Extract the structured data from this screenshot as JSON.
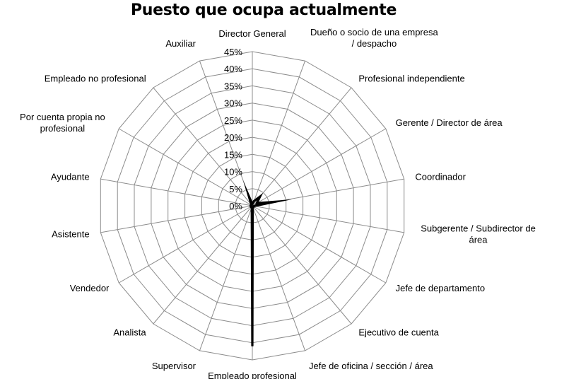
{
  "chart_data": {
    "type": "radar",
    "title": "Puesto que ocupa actualmente",
    "categories": [
      "Director General",
      "Dueño o socio de una empresa / despacho",
      "Profesional independiente",
      "Gerente / Director de área",
      "Coordinador",
      "Subgerente / Subdirector de área",
      "Jefe de departamento",
      "Ejecutivo de cuenta",
      "Jefe de oficina / sección / área",
      "Empleado profesional",
      "Supervisor",
      "Analista",
      "Vendedor",
      "Asistente",
      "Ayudante",
      "Por cuenta propia no profesional",
      "Empleado no profesional",
      "Auxiliar"
    ],
    "label_lines": [
      [
        "Director General"
      ],
      [
        "Dueño o socio de una empresa",
        "/ despacho"
      ],
      [
        "Profesional independiente"
      ],
      [
        "Gerente / Director de área"
      ],
      [
        "Coordinador"
      ],
      [
        "Subgerente / Subdirector de",
        "área"
      ],
      [
        "Jefe de departamento"
      ],
      [
        "Ejecutivo de cuenta"
      ],
      [
        "Jefe de oficina / sección / área"
      ],
      [
        "Empleado profesional"
      ],
      [
        "Supervisor"
      ],
      [
        "Analista"
      ],
      [
        "Vendedor"
      ],
      [
        "Asistente"
      ],
      [
        "Ayudante"
      ],
      [
        "Por cuenta propia no",
        "profesional"
      ],
      [
        "Empleado no profesional"
      ],
      [
        "Auxiliar"
      ]
    ],
    "values": [
      0.5,
      1.5,
      3.5,
      1.5,
      6.5,
      0.5,
      0.5,
      0.3,
      0.3,
      41.0,
      0.5,
      0.5,
      0.5,
      0.5,
      0.5,
      0.5,
      0.5,
      3.0
    ],
    "rlim": [
      0,
      45
    ],
    "ticks": [
      0,
      5,
      10,
      15,
      20,
      25,
      30,
      35,
      40,
      45
    ],
    "tick_labels": [
      "0%",
      "5%",
      "10%",
      "15%",
      "20%",
      "25%",
      "30%",
      "35%",
      "40%",
      "45%"
    ],
    "grid": true,
    "legend": "none",
    "colors": {
      "grid": "#8c8c8c",
      "series": "#000000"
    }
  }
}
